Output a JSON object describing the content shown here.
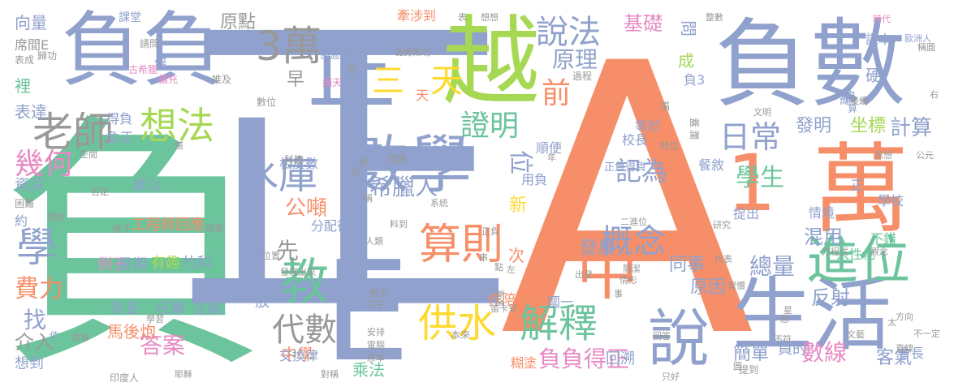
{
  "words": [
    {
      "t": "負",
      "c": "#6cc49d",
      "big": true
    },
    {
      "t": "正",
      "c": "#8fa1cc",
      "big": true
    },
    {
      "t": "A",
      "c": "#f68f69",
      "big": true
    },
    {
      "t": "E",
      "c": "#8fa1cc",
      "big": true
    },
    {
      "t": "負數",
      "c": "#8fa1cc"
    },
    {
      "t": "負負",
      "c": "#8fa1cc"
    },
    {
      "t": "越",
      "c": "#a6d854"
    },
    {
      "t": "正",
      "c": "#8fa1cc"
    },
    {
      "t": "萬",
      "c": "#f68f69"
    },
    {
      "t": "1",
      "c": "#f68f69"
    },
    {
      "t": "生活",
      "c": "#8fa1cc"
    },
    {
      "t": "數學",
      "c": "#8fa1cc"
    },
    {
      "t": "中",
      "c": "#f68f69"
    },
    {
      "t": "說",
      "c": "#8fa1cc"
    },
    {
      "t": "進位",
      "c": "#6cc49d"
    },
    {
      "t": "教",
      "c": "#6cc49d"
    },
    {
      "t": "3萬",
      "c": "#999999"
    },
    {
      "t": "老師",
      "c": "#999999"
    },
    {
      "t": "想法",
      "c": "#a6d854"
    },
    {
      "t": "水庫",
      "c": "#8fa1cc"
    },
    {
      "t": "算則",
      "c": "#f68f69"
    },
    {
      "t": "供水",
      "c": "#ffd92f"
    },
    {
      "t": "解釋",
      "c": "#6cc49d"
    },
    {
      "t": "概念",
      "c": "#8fa1cc"
    },
    {
      "t": "說法",
      "c": "#8fa1cc"
    },
    {
      "t": "證明",
      "c": "#6cc49d"
    },
    {
      "t": "日常",
      "c": "#8fa1cc"
    },
    {
      "t": "幾何",
      "c": "#e78ac3"
    },
    {
      "t": "學",
      "c": "#8fa1cc"
    },
    {
      "t": "三",
      "c": "#ffd92f"
    },
    {
      "t": "天",
      "c": "#ffd92f"
    },
    {
      "t": "記為",
      "c": "#8fa1cc"
    },
    {
      "t": "學生",
      "c": "#6cc49d"
    },
    {
      "t": "代數",
      "c": "#999999"
    },
    {
      "t": "答案",
      "c": "#e78ac3"
    },
    {
      "t": "負負得正",
      "c": "#e78ac3"
    },
    {
      "t": "數線",
      "c": "#e78ac3"
    },
    {
      "t": "總量",
      "c": "#8fa1cc"
    },
    {
      "t": "前",
      "c": "#f68f69"
    },
    {
      "t": "位",
      "c": "#8fa1cc"
    },
    {
      "t": "希臘人",
      "c": "#8fa1cc"
    },
    {
      "t": "原理",
      "c": "#8fa1cc"
    },
    {
      "t": "原點",
      "c": "#999999"
    },
    {
      "t": "基礎",
      "c": "#e78ac3"
    },
    {
      "t": "發明",
      "c": "#8fa1cc"
    },
    {
      "t": "坐標",
      "c": "#a6d854"
    },
    {
      "t": "計算",
      "c": "#8fa1cc"
    },
    {
      "t": "費力",
      "c": "#f68f69"
    },
    {
      "t": "公噸",
      "c": "#f68f69"
    },
    {
      "t": "混用",
      "c": "#8fa1cc"
    },
    {
      "t": "反射",
      "c": "#8fa1cc"
    },
    {
      "t": "簡單",
      "c": "#8fa1cc"
    },
    {
      "t": "客氣",
      "c": "#8fa1cc"
    },
    {
      "t": "中學",
      "c": "#f68f69"
    },
    {
      "t": "乘法",
      "c": "#6cc49d"
    },
    {
      "t": "原因",
      "c": "#8fa1cc"
    },
    {
      "t": "同事",
      "c": "#8fa1cc"
    },
    {
      "t": "發展",
      "c": "#8fa1cc"
    },
    {
      "t": "找",
      "c": "#8fa1cc"
    },
    {
      "t": "介入",
      "c": "#999999"
    },
    {
      "t": "先",
      "c": "#999999"
    },
    {
      "t": "早",
      "c": "#999999"
    },
    {
      "t": "裡",
      "c": "#6cc49d"
    },
    {
      "t": "表達",
      "c": "#8fa1cc"
    },
    {
      "t": "向量",
      "c": "#8fa1cc"
    },
    {
      "t": "工程師回應",
      "c": "#f68f69"
    },
    {
      "t": "例子",
      "c": "#e78ac3"
    },
    {
      "t": "星期",
      "c": "#8fa1cc"
    },
    {
      "t": "有趣",
      "c": "#a6d854"
    },
    {
      "t": "竹科",
      "c": "#8fa1cc"
    },
    {
      "t": "家長",
      "c": "#8fa1cc"
    },
    {
      "t": "任職",
      "c": "#8fa1cc"
    },
    {
      "t": "定義",
      "c": "#8fa1cc"
    },
    {
      "t": "馬後炮",
      "c": "#f68f69"
    },
    {
      "t": "乘以",
      "c": "#8fa1cc"
    },
    {
      "t": "資深",
      "c": "#8fa1cc"
    },
    {
      "t": "分配律",
      "c": "#8fa1cc"
    },
    {
      "t": "相反數",
      "c": "#8fa1cc"
    },
    {
      "t": "交換律",
      "c": "#8fa1cc"
    },
    {
      "t": "想到",
      "c": "#8fa1cc"
    },
    {
      "t": "課堂",
      "c": "#8fa1cc"
    },
    {
      "t": "牽涉到",
      "c": "#f68f69"
    },
    {
      "t": "倒過來",
      "c": "#8fa1cc"
    },
    {
      "t": "徒勞無功",
      "c": "#999999"
    },
    {
      "t": "校長",
      "c": "#8fa1cc"
    },
    {
      "t": "等於",
      "c": "#8fa1cc"
    },
    {
      "t": "順便",
      "c": "#8fa1cc"
    },
    {
      "t": "餐敘",
      "c": "#8fa1cc"
    },
    {
      "t": "提出",
      "c": "#8fa1cc"
    },
    {
      "t": "情境",
      "c": "#8fa1cc"
    },
    {
      "t": "人性化",
      "c": "#6cc49d"
    },
    {
      "t": "會長",
      "c": "#8fa1cc"
    },
    {
      "t": "不錯",
      "c": "#6cc49d"
    },
    {
      "t": "學校",
      "c": "#8fa1cc"
    },
    {
      "t": "課本",
      "c": "#8fa1cc"
    },
    {
      "t": "歐洲人",
      "c": "#8fa1cc"
    },
    {
      "t": "稱圓",
      "c": "#999999"
    },
    {
      "t": "正負得負",
      "c": "#8fa1cc"
    },
    {
      "t": "作陪",
      "c": "#f68f69"
    },
    {
      "t": "國一",
      "c": "#8fa1cc"
    },
    {
      "t": "新",
      "c": "#ffd92f"
    },
    {
      "t": "次",
      "c": "#f68f69"
    },
    {
      "t": "回溯",
      "c": "#8fa1cc"
    },
    {
      "t": "員的",
      "c": "#8fa1cc"
    },
    {
      "t": "糊塗",
      "c": "#f68f69"
    },
    {
      "t": "成",
      "c": "#a6d854"
    },
    {
      "t": "問",
      "c": "#8fa1cc"
    },
    {
      "t": "編",
      "c": "#8fa1cc"
    },
    {
      "t": "硬",
      "c": "#8fa1cc"
    },
    {
      "t": "倍",
      "c": "#8fa1cc"
    },
    {
      "t": "放",
      "c": "#8fa1cc"
    },
    {
      "t": "約",
      "c": "#8fa1cc"
    },
    {
      "t": "負正",
      "c": "#8fa1cc"
    },
    {
      "t": "得負",
      "c": "#8fa1cc"
    },
    {
      "t": "負3",
      "c": "#8fa1cc"
    },
    {
      "t": "天",
      "c": "#f68f69"
    },
    {
      "t": "用負",
      "c": "#8fa1cc"
    },
    {
      "t": "正",
      "c": "#8fa1cc"
    },
    {
      "t": "過程",
      "c": "#999999"
    },
    {
      "t": "算",
      "c": "#8fa1cc"
    },
    {
      "t": "件",
      "c": "#8fa1cc"
    },
    {
      "t": "表",
      "c": "#999999"
    },
    {
      "t": "想想",
      "c": "#999999"
    },
    {
      "t": "整數",
      "c": "#999999"
    },
    {
      "t": "時代",
      "c": "#e78ac3"
    },
    {
      "t": "後續",
      "c": "#999999"
    },
    {
      "t": "文明",
      "c": "#999999"
    },
    {
      "t": "思想",
      "c": "#999999"
    },
    {
      "t": "公元",
      "c": "#999999"
    },
    {
      "t": "右",
      "c": "#999999"
    },
    {
      "t": "席間E",
      "c": "#999999"
    },
    {
      "t": "表成",
      "c": "#999999"
    },
    {
      "t": "歸功",
      "c": "#999999"
    },
    {
      "t": "古希臘",
      "c": "#e78ac3"
    },
    {
      "t": "擴充",
      "c": "#e78ac3"
    },
    {
      "t": "請問",
      "c": "#999999"
    },
    {
      "t": "推及",
      "c": "#999999"
    },
    {
      "t": "鋪天",
      "c": "#e78ac3"
    },
    {
      "t": "零",
      "c": "#999999"
    },
    {
      "t": "數位",
      "c": "#999999"
    },
    {
      "t": "科技",
      "c": "#999999"
    },
    {
      "t": "地位",
      "c": "#999999"
    },
    {
      "t": "蓋",
      "c": "#999999"
    },
    {
      "t": "瀾",
      "c": "#999999"
    },
    {
      "t": "描",
      "c": "#999999"
    },
    {
      "t": "空間",
      "c": "#999999"
    },
    {
      "t": "搭",
      "c": "#999999"
    },
    {
      "t": "否定",
      "c": "#999999"
    },
    {
      "t": "困難",
      "c": "#999999"
    },
    {
      "t": "開創",
      "c": "#999999"
    },
    {
      "t": "幾千",
      "c": "#999999"
    },
    {
      "t": "語彙",
      "c": "#999999"
    },
    {
      "t": "位置",
      "c": "#999999"
    },
    {
      "t": "發展出來",
      "c": "#999999"
    },
    {
      "t": "學習",
      "c": "#999999"
    },
    {
      "t": "墳事",
      "c": "#999999"
    },
    {
      "t": "印度人",
      "c": "#999999"
    },
    {
      "t": "耶穌",
      "c": "#999999"
    },
    {
      "t": "對稱",
      "c": "#999999"
    },
    {
      "t": "原本",
      "c": "#999999"
    },
    {
      "t": "電腦",
      "c": "#999999"
    },
    {
      "t": "安排",
      "c": "#999999"
    },
    {
      "t": "孔子",
      "c": "#999999"
    },
    {
      "t": "數字",
      "c": "#999999"
    },
    {
      "t": "本來",
      "c": "#999999"
    },
    {
      "t": "笛卡兒",
      "c": "#999999"
    },
    {
      "t": "漸進",
      "c": "#999999"
    },
    {
      "t": "出發",
      "c": "#999999"
    },
    {
      "t": "簡潔",
      "c": "#999999"
    },
    {
      "t": "情形",
      "c": "#999999"
    },
    {
      "t": "二進位",
      "c": "#999999"
    },
    {
      "t": "研究",
      "c": "#999999"
    },
    {
      "t": "代表",
      "c": "#999999"
    },
    {
      "t": "習慣",
      "c": "#999999"
    },
    {
      "t": "觀念",
      "c": "#999999"
    },
    {
      "t": "方程式",
      "c": "#999999"
    },
    {
      "t": "方向",
      "c": "#999999"
    },
    {
      "t": "文藝",
      "c": "#999999"
    },
    {
      "t": "不一定",
      "c": "#999999"
    },
    {
      "t": "直線",
      "c": "#999999"
    },
    {
      "t": "不符",
      "c": "#999999"
    },
    {
      "t": "提到",
      "c": "#999999"
    },
    {
      "t": "只好",
      "c": "#999999"
    },
    {
      "t": "回答",
      "c": "#999999"
    },
    {
      "t": "系統",
      "c": "#999999"
    },
    {
      "t": "料到",
      "c": "#999999"
    },
    {
      "t": "人類",
      "c": "#999999"
    },
    {
      "t": "復興",
      "c": "#999999"
    },
    {
      "t": "舊",
      "c": "#999999"
    },
    {
      "t": "知",
      "c": "#999999"
    },
    {
      "t": "稱",
      "c": "#999999"
    },
    {
      "t": "正負",
      "c": "#999999"
    },
    {
      "t": "串",
      "c": "#999999"
    },
    {
      "t": "點",
      "c": "#999999"
    },
    {
      "t": "左",
      "c": "#999999"
    },
    {
      "t": "年",
      "c": "#999999"
    },
    {
      "t": "事",
      "c": "#999999"
    },
    {
      "t": "太",
      "c": "#999999"
    },
    {
      "t": "圓",
      "c": "#999999"
    },
    {
      "t": "想",
      "c": "#999999"
    },
    {
      "t": "星",
      "c": "#999999"
    }
  ]
}
